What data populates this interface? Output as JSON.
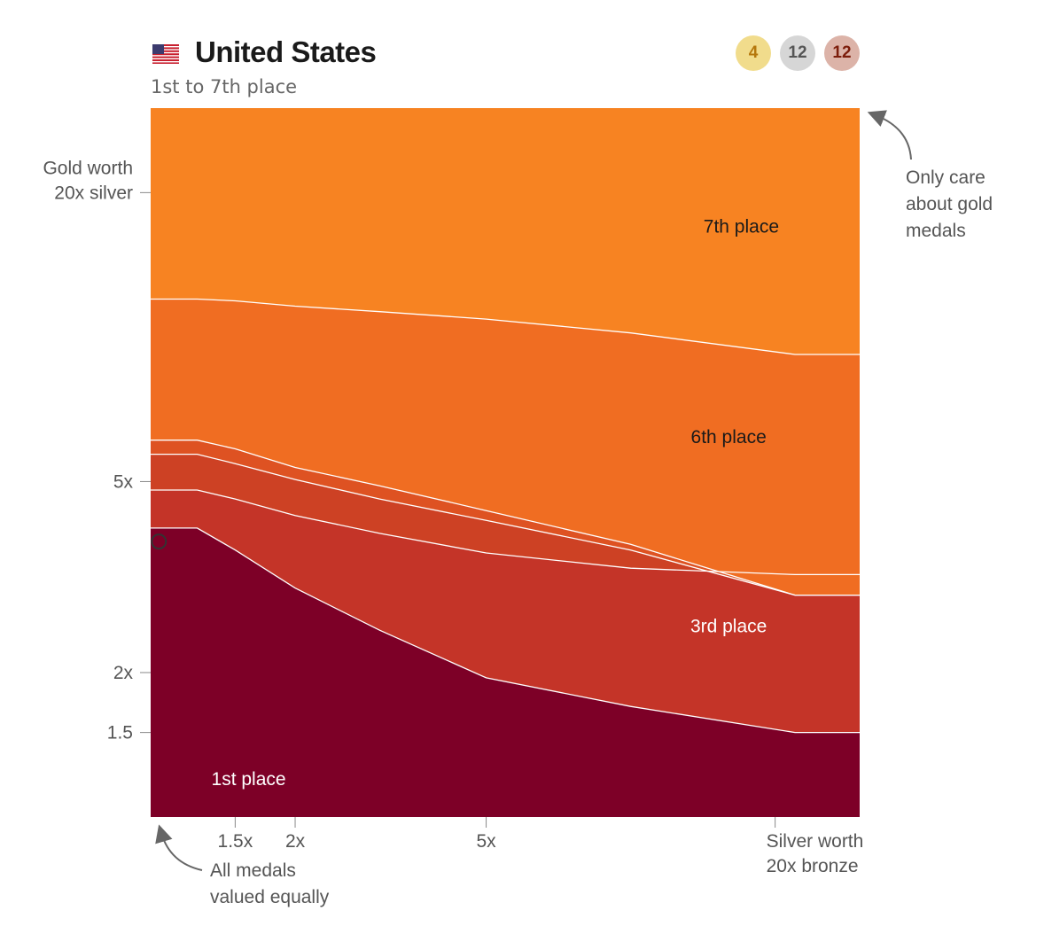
{
  "header": {
    "country": "United States",
    "subtitle": "1st to 7th place",
    "flag_icon": "us-flag-icon",
    "medals": {
      "gold": "4",
      "silver": "12",
      "bronze": "12"
    },
    "medal_colors": {
      "gold_bg": "#f1dc8c",
      "silver_bg": "#d6d6d6",
      "bronze_bg": "#dcb3a8"
    }
  },
  "annotations": {
    "top_right": "Only care\nabout gold\nmedals",
    "bottom_left": "All medals\nvalued equally"
  },
  "chart_data": {
    "type": "area",
    "x_scale": "log",
    "y_scale": "log",
    "xlim": [
      1,
      30
    ],
    "ylim": [
      1,
      30
    ],
    "x_ticks": [
      {
        "value": 1.5,
        "label": "1.5x"
      },
      {
        "value": 2,
        "label": "2x"
      },
      {
        "value": 5,
        "label": "5x"
      },
      {
        "value": 20,
        "label": "Silver worth\n20x bronze"
      }
    ],
    "y_ticks": [
      {
        "value": 1.5,
        "label": "1.5"
      },
      {
        "value": 2,
        "label": "2x"
      },
      {
        "value": 5,
        "label": "5x"
      },
      {
        "value": 20,
        "label": "Gold worth\n20x silver"
      }
    ],
    "x_samples": [
      1,
      1.25,
      1.5,
      2,
      3,
      5,
      10,
      22,
      30
    ],
    "boundaries": [
      {
        "name": "1st/2nd",
        "y": [
          4.0,
          4.0,
          3.6,
          3.0,
          2.45,
          1.95,
          1.7,
          1.5,
          1.5
        ]
      },
      {
        "name": "2nd/3rd",
        "y": [
          4.8,
          4.8,
          4.6,
          4.25,
          3.9,
          3.55,
          3.3,
          3.2,
          3.2
        ]
      },
      {
        "name": "3rd/4th",
        "y": [
          5.7,
          5.7,
          5.45,
          5.05,
          4.6,
          4.15,
          3.6,
          2.9,
          2.9
        ]
      },
      {
        "name": "4th/6th",
        "y": [
          6.1,
          6.1,
          5.85,
          5.35,
          4.9,
          4.35,
          3.7,
          2.9,
          2.9
        ]
      },
      {
        "name": "6th/7th",
        "y": [
          12.0,
          12.0,
          11.9,
          11.6,
          11.3,
          10.9,
          10.2,
          9.2,
          9.2
        ]
      }
    ],
    "regions": [
      {
        "name": "1st place",
        "label": "1st place",
        "color": "#7d0027"
      },
      {
        "name": "3rd place",
        "label": "3rd place",
        "color": "#c43428"
      },
      {
        "name": "4th place",
        "label": "",
        "color": "#cd4124"
      },
      {
        "name": "5th place",
        "label": "",
        "color": "#de5222"
      },
      {
        "name": "6th place",
        "label": "6th place",
        "color": "#f06d22"
      },
      {
        "name": "7th place",
        "label": "7th place",
        "color": "#f78322"
      }
    ],
    "region_label_positions": [
      {
        "label": "1st place",
        "x": 1.6,
        "y": 1.2
      },
      {
        "label": "3rd place",
        "x": 16,
        "y": 2.5
      },
      {
        "label": "6th place",
        "x": 16,
        "y": 6.2
      },
      {
        "label": "7th place",
        "x": 17,
        "y": 17
      }
    ],
    "label_colors": {
      "1st place": "#ffffff",
      "3rd place": "#ffffff",
      "6th place": "#1a1a1a",
      "7th place": "#1a1a1a"
    },
    "marker": {
      "x": 1.04,
      "y": 3.75
    }
  }
}
